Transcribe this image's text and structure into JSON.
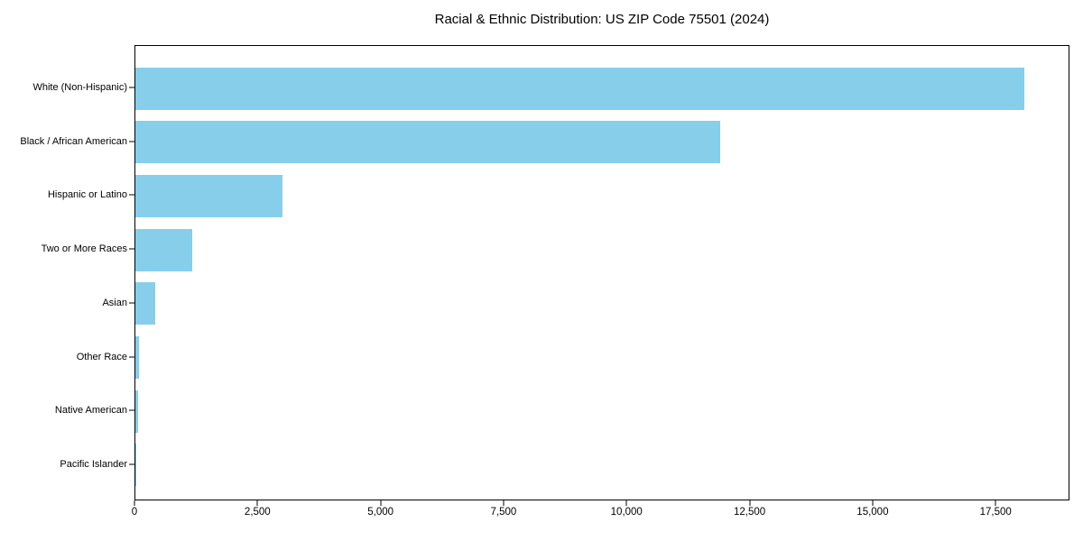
{
  "chart_data": {
    "type": "bar",
    "orientation": "horizontal",
    "title": "Racial & Ethnic Distribution: US ZIP Code 75501 (2024)",
    "categories": [
      "White (Non-Hispanic)",
      "Black / African American",
      "Hispanic or Latino",
      "Two or More Races",
      "Asian",
      "Other Race",
      "Native American",
      "Pacific Islander"
    ],
    "values": [
      18100,
      11900,
      3000,
      1150,
      400,
      70,
      60,
      10
    ],
    "xlabel": "",
    "ylabel": "",
    "xlim": [
      0,
      19000
    ],
    "x_ticks": [
      0,
      2500,
      5000,
      7500,
      10000,
      12500,
      15000,
      17500
    ],
    "x_tick_labels": [
      "0",
      "2,500",
      "5,000",
      "7,500",
      "10,000",
      "12,500",
      "15,000",
      "17,500"
    ],
    "bar_color": "#87CEEB",
    "axis_color": "#000000",
    "background_color": "#ffffff",
    "grid": false,
    "legend": "none"
  }
}
